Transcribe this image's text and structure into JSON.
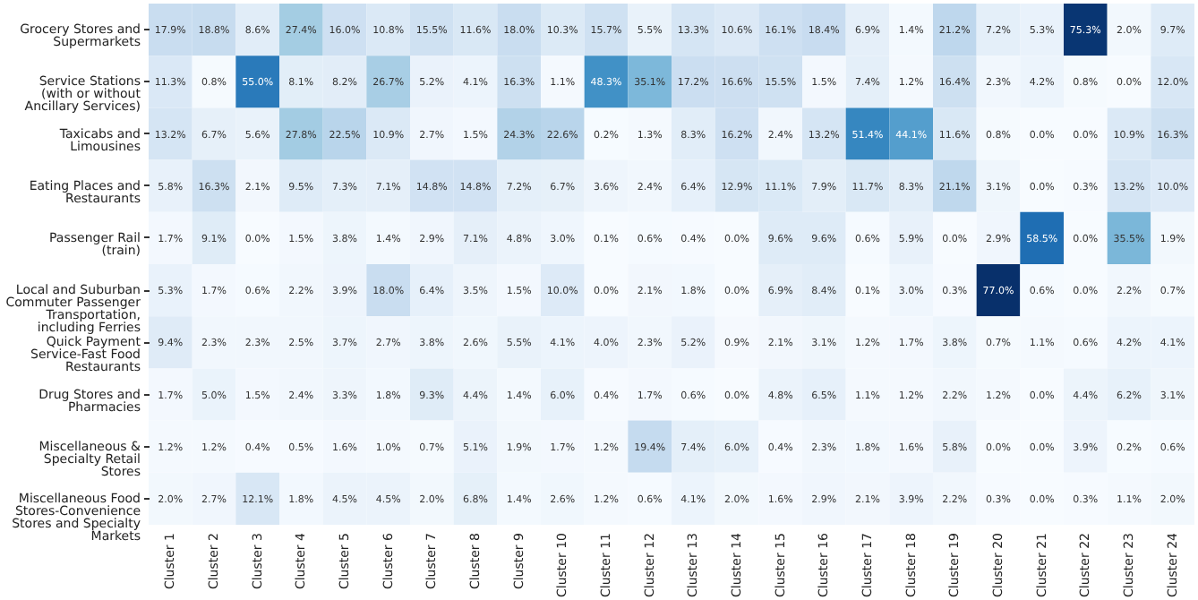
{
  "chart_data": {
    "type": "heatmap",
    "categories": [
      "Cluster 1",
      "Cluster 2",
      "Cluster 3",
      "Cluster 4",
      "Cluster 5",
      "Cluster 6",
      "Cluster 7",
      "Cluster 8",
      "Cluster 9",
      "Cluster 10",
      "Cluster 11",
      "Cluster 12",
      "Cluster 13",
      "Cluster 14",
      "Cluster 15",
      "Cluster 16",
      "Cluster 17",
      "Cluster 18",
      "Cluster 19",
      "Cluster 20",
      "Cluster 21",
      "Cluster 22",
      "Cluster 23",
      "Cluster 24"
    ],
    "y_categories": [
      "Grocery Stores and Supermarkets",
      "Service Stations (with or without Ancillary Services)",
      "Taxicabs and Limousines",
      "Eating Places and Restaurants",
      "Passenger Rail (train)",
      "Local and Suburban Commuter Passenger Transportation, including Ferries",
      "Quick Payment Service-Fast Food Restaurants",
      "Drug Stores and Pharmacies",
      "Miscellaneous & Specialty Retail Stores",
      "Miscellaneous Food Stores-Convenience Stores and Specialty Markets"
    ],
    "cells": [
      [
        17.9,
        18.8,
        8.6,
        27.4,
        16.0,
        10.8,
        15.5,
        11.6,
        18.0,
        10.3,
        15.7,
        5.5,
        13.3,
        10.6,
        16.1,
        18.4,
        6.9,
        1.4,
        21.2,
        7.2,
        5.3,
        75.3,
        2.0,
        9.7
      ],
      [
        11.3,
        0.8,
        55.0,
        8.1,
        8.2,
        26.7,
        5.2,
        4.1,
        16.3,
        1.1,
        48.3,
        35.1,
        17.2,
        16.6,
        15.5,
        1.5,
        7.4,
        1.2,
        16.4,
        2.3,
        4.2,
        0.8,
        0.0,
        12.0
      ],
      [
        13.2,
        6.7,
        5.6,
        27.8,
        22.5,
        10.9,
        2.7,
        1.5,
        24.3,
        22.6,
        0.2,
        1.3,
        8.3,
        16.2,
        2.4,
        13.2,
        51.4,
        44.1,
        11.6,
        0.8,
        0.0,
        0.0,
        10.9,
        16.3
      ],
      [
        5.8,
        16.3,
        2.1,
        9.5,
        7.3,
        7.1,
        14.8,
        14.8,
        7.2,
        6.7,
        3.6,
        2.4,
        6.4,
        12.9,
        11.1,
        7.9,
        11.7,
        8.3,
        21.1,
        3.1,
        0.0,
        0.3,
        13.2,
        10.0
      ],
      [
        1.7,
        9.1,
        0.0,
        1.5,
        3.8,
        1.4,
        2.9,
        7.1,
        4.8,
        3.0,
        0.1,
        0.6,
        0.4,
        0.0,
        9.6,
        9.6,
        0.6,
        5.9,
        0.0,
        2.9,
        58.5,
        0.0,
        35.5,
        1.9
      ],
      [
        5.3,
        1.7,
        0.6,
        2.2,
        3.9,
        18.0,
        6.4,
        3.5,
        1.5,
        10.0,
        0.0,
        2.1,
        1.8,
        0.0,
        6.9,
        8.4,
        0.1,
        3.0,
        0.3,
        77.0,
        0.6,
        0.0,
        2.2,
        0.7
      ],
      [
        9.4,
        2.3,
        2.3,
        2.5,
        3.7,
        2.7,
        3.8,
        2.6,
        5.5,
        4.1,
        4.0,
        2.3,
        5.2,
        0.9,
        2.1,
        3.1,
        1.2,
        1.7,
        3.8,
        0.7,
        1.1,
        0.6,
        4.2,
        4.1
      ],
      [
        1.7,
        5.0,
        1.5,
        2.4,
        3.3,
        1.8,
        9.3,
        4.4,
        1.4,
        6.0,
        0.4,
        1.7,
        0.6,
        0.0,
        4.8,
        6.5,
        1.1,
        1.2,
        2.2,
        1.2,
        0.0,
        4.4,
        6.2,
        3.1
      ],
      [
        1.2,
        1.2,
        0.4,
        0.5,
        1.6,
        1.0,
        0.7,
        5.1,
        1.9,
        1.7,
        1.2,
        19.4,
        7.4,
        6.0,
        0.4,
        2.3,
        1.8,
        1.6,
        5.8,
        0.0,
        0.0,
        3.9,
        0.2,
        0.6
      ],
      [
        2.0,
        2.7,
        12.1,
        1.8,
        4.5,
        4.5,
        2.0,
        6.8,
        1.4,
        2.6,
        1.2,
        0.6,
        4.1,
        2.0,
        1.6,
        2.9,
        2.1,
        3.9,
        2.2,
        0.3,
        0.0,
        0.3,
        1.1,
        2.0
      ]
    ],
    "cell_labels": [
      [
        "17.9%",
        "18.8%",
        "8.6%",
        "27.4%",
        "16.0%",
        "10.8%",
        "15.5%",
        "11.6%",
        "18.0%",
        "10.3%",
        "15.7%",
        "5.5%",
        "13.3%",
        "10.6%",
        "16.1%",
        "18.4%",
        "6.9%",
        "1.4%",
        "21.2%",
        "7.2%",
        "5.3%",
        "75.3%",
        "2.0%",
        "9.7%"
      ],
      [
        "11.3%",
        "0.8%",
        "55.0%",
        "8.1%",
        "8.2%",
        "26.7%",
        "5.2%",
        "4.1%",
        "16.3%",
        "1.1%",
        "48.3%",
        "35.1%",
        "17.2%",
        "16.6%",
        "15.5%",
        "1.5%",
        "7.4%",
        "1.2%",
        "16.4%",
        "2.3%",
        "4.2%",
        "0.8%",
        "0.0%",
        "12.0%"
      ],
      [
        "13.2%",
        "6.7%",
        "5.6%",
        "27.8%",
        "22.5%",
        "10.9%",
        "2.7%",
        "1.5%",
        "24.3%",
        "22.6%",
        "0.2%",
        "1.3%",
        "8.3%",
        "16.2%",
        "2.4%",
        "13.2%",
        "51.4%",
        "44.1%",
        "11.6%",
        "0.8%",
        "0.0%",
        "0.0%",
        "10.9%",
        "16.3%"
      ],
      [
        "5.8%",
        "16.3%",
        "2.1%",
        "9.5%",
        "7.3%",
        "7.1%",
        "14.8%",
        "14.8%",
        "7.2%",
        "6.7%",
        "3.6%",
        "2.4%",
        "6.4%",
        "12.9%",
        "11.1%",
        "7.9%",
        "11.7%",
        "8.3%",
        "21.1%",
        "3.1%",
        "0.0%",
        "0.3%",
        "13.2%",
        "10.0%"
      ],
      [
        "1.7%",
        "9.1%",
        "0.0%",
        "1.5%",
        "3.8%",
        "1.4%",
        "2.9%",
        "7.1%",
        "4.8%",
        "3.0%",
        "0.1%",
        "0.6%",
        "0.4%",
        "0.0%",
        "9.6%",
        "9.6%",
        "0.6%",
        "5.9%",
        "0.0%",
        "2.9%",
        "58.5%",
        "0.0%",
        "35.5%",
        "1.9%"
      ],
      [
        "5.3%",
        "1.7%",
        "0.6%",
        "2.2%",
        "3.9%",
        "18.0%",
        "6.4%",
        "3.5%",
        "1.5%",
        "10.0%",
        "0.0%",
        "2.1%",
        "1.8%",
        "0.0%",
        "6.9%",
        "8.4%",
        "0.1%",
        "3.0%",
        "0.3%",
        "77.0%",
        "0.6%",
        "0.0%",
        "2.2%",
        "0.7%"
      ],
      [
        "9.4%",
        "2.3%",
        "2.3%",
        "2.5%",
        "3.7%",
        "2.7%",
        "3.8%",
        "2.6%",
        "5.5%",
        "4.1%",
        "4.0%",
        "2.3%",
        "5.2%",
        "0.9%",
        "2.1%",
        "3.1%",
        "1.2%",
        "1.7%",
        "3.8%",
        "0.7%",
        "1.1%",
        "0.6%",
        "4.2%",
        "4.1%"
      ],
      [
        "1.7%",
        "5.0%",
        "1.5%",
        "2.4%",
        "3.3%",
        "1.8%",
        "9.3%",
        "4.4%",
        "1.4%",
        "6.0%",
        "0.4%",
        "1.7%",
        "0.6%",
        "0.0%",
        "4.8%",
        "6.5%",
        "1.1%",
        "1.2%",
        "2.2%",
        "1.2%",
        "0.0%",
        "4.4%",
        "6.2%",
        "3.1%"
      ],
      [
        "1.2%",
        "1.2%",
        "0.4%",
        "0.5%",
        "1.6%",
        "1.0%",
        "0.7%",
        "5.1%",
        "1.9%",
        "1.7%",
        "1.2%",
        "19.4%",
        "7.4%",
        "6.0%",
        "0.4%",
        "2.3%",
        "1.8%",
        "1.6%",
        "5.8%",
        "0.0%",
        "0.0%",
        "3.9%",
        "0.2%",
        "0.6%"
      ],
      [
        "2.0%",
        "2.7%",
        "12.1%",
        "1.8%",
        "4.5%",
        "4.5%",
        "2.0%",
        "6.8%",
        "1.4%",
        "2.6%",
        "1.2%",
        "0.6%",
        "4.1%",
        "2.0%",
        "1.6%",
        "2.9%",
        "2.1%",
        "3.9%",
        "2.2%",
        "0.3%",
        "0.0%",
        "0.3%",
        "1.1%",
        "2.0%"
      ]
    ]
  }
}
